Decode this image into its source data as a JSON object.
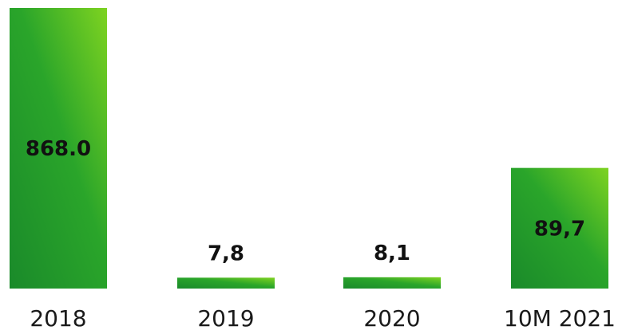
{
  "chart_data": {
    "type": "bar",
    "categories": [
      "2018",
      "2019",
      "2020",
      "10M 2021"
    ],
    "values": [
      868.0,
      7.8,
      8.1,
      89.7
    ],
    "value_labels": [
      "868.0",
      "7,8",
      "8,1",
      "89,7"
    ],
    "title": "",
    "xlabel": "",
    "ylabel": "",
    "scale": "broken",
    "grid": false,
    "legend": "none",
    "colors": {
      "bar_dark": "#1a8a2a",
      "bar_mid": "#2aa52a",
      "bar_light": "#7ed321",
      "label_text": "#111111",
      "axis_text": "#1a1a1a"
    }
  }
}
